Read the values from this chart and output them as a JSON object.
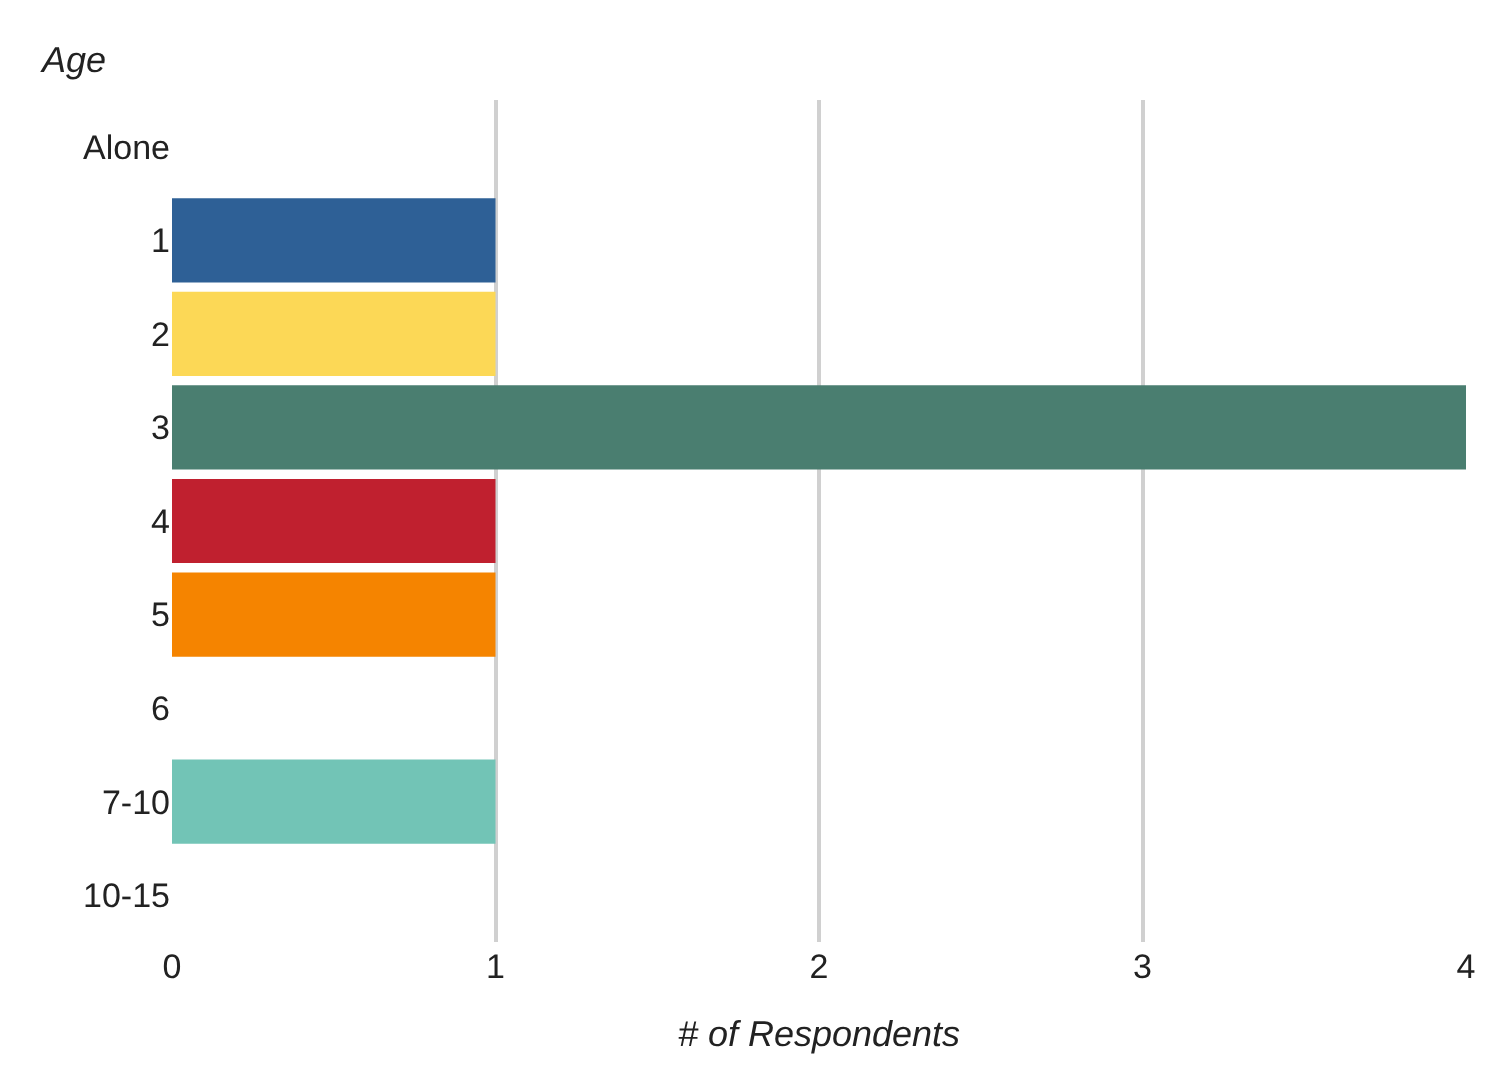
{
  "chart_data": {
    "type": "bar",
    "orientation": "horizontal",
    "ylabel": "Age",
    "xlabel": "# of Respondents",
    "categories": [
      "Alone",
      "1",
      "2",
      "3",
      "4",
      "5",
      "6",
      "7-10",
      "10-15"
    ],
    "values": [
      0,
      1,
      1,
      4,
      1,
      1,
      0,
      1,
      0
    ],
    "colors": [
      null,
      "#2e6096",
      "#fcd856",
      "#4a7e70",
      "#c0202f",
      "#f58400",
      null,
      "#72c4b6",
      null
    ],
    "xlim": [
      0,
      4
    ],
    "xticks": [
      0,
      1,
      2,
      3,
      4
    ],
    "grid": "x"
  }
}
